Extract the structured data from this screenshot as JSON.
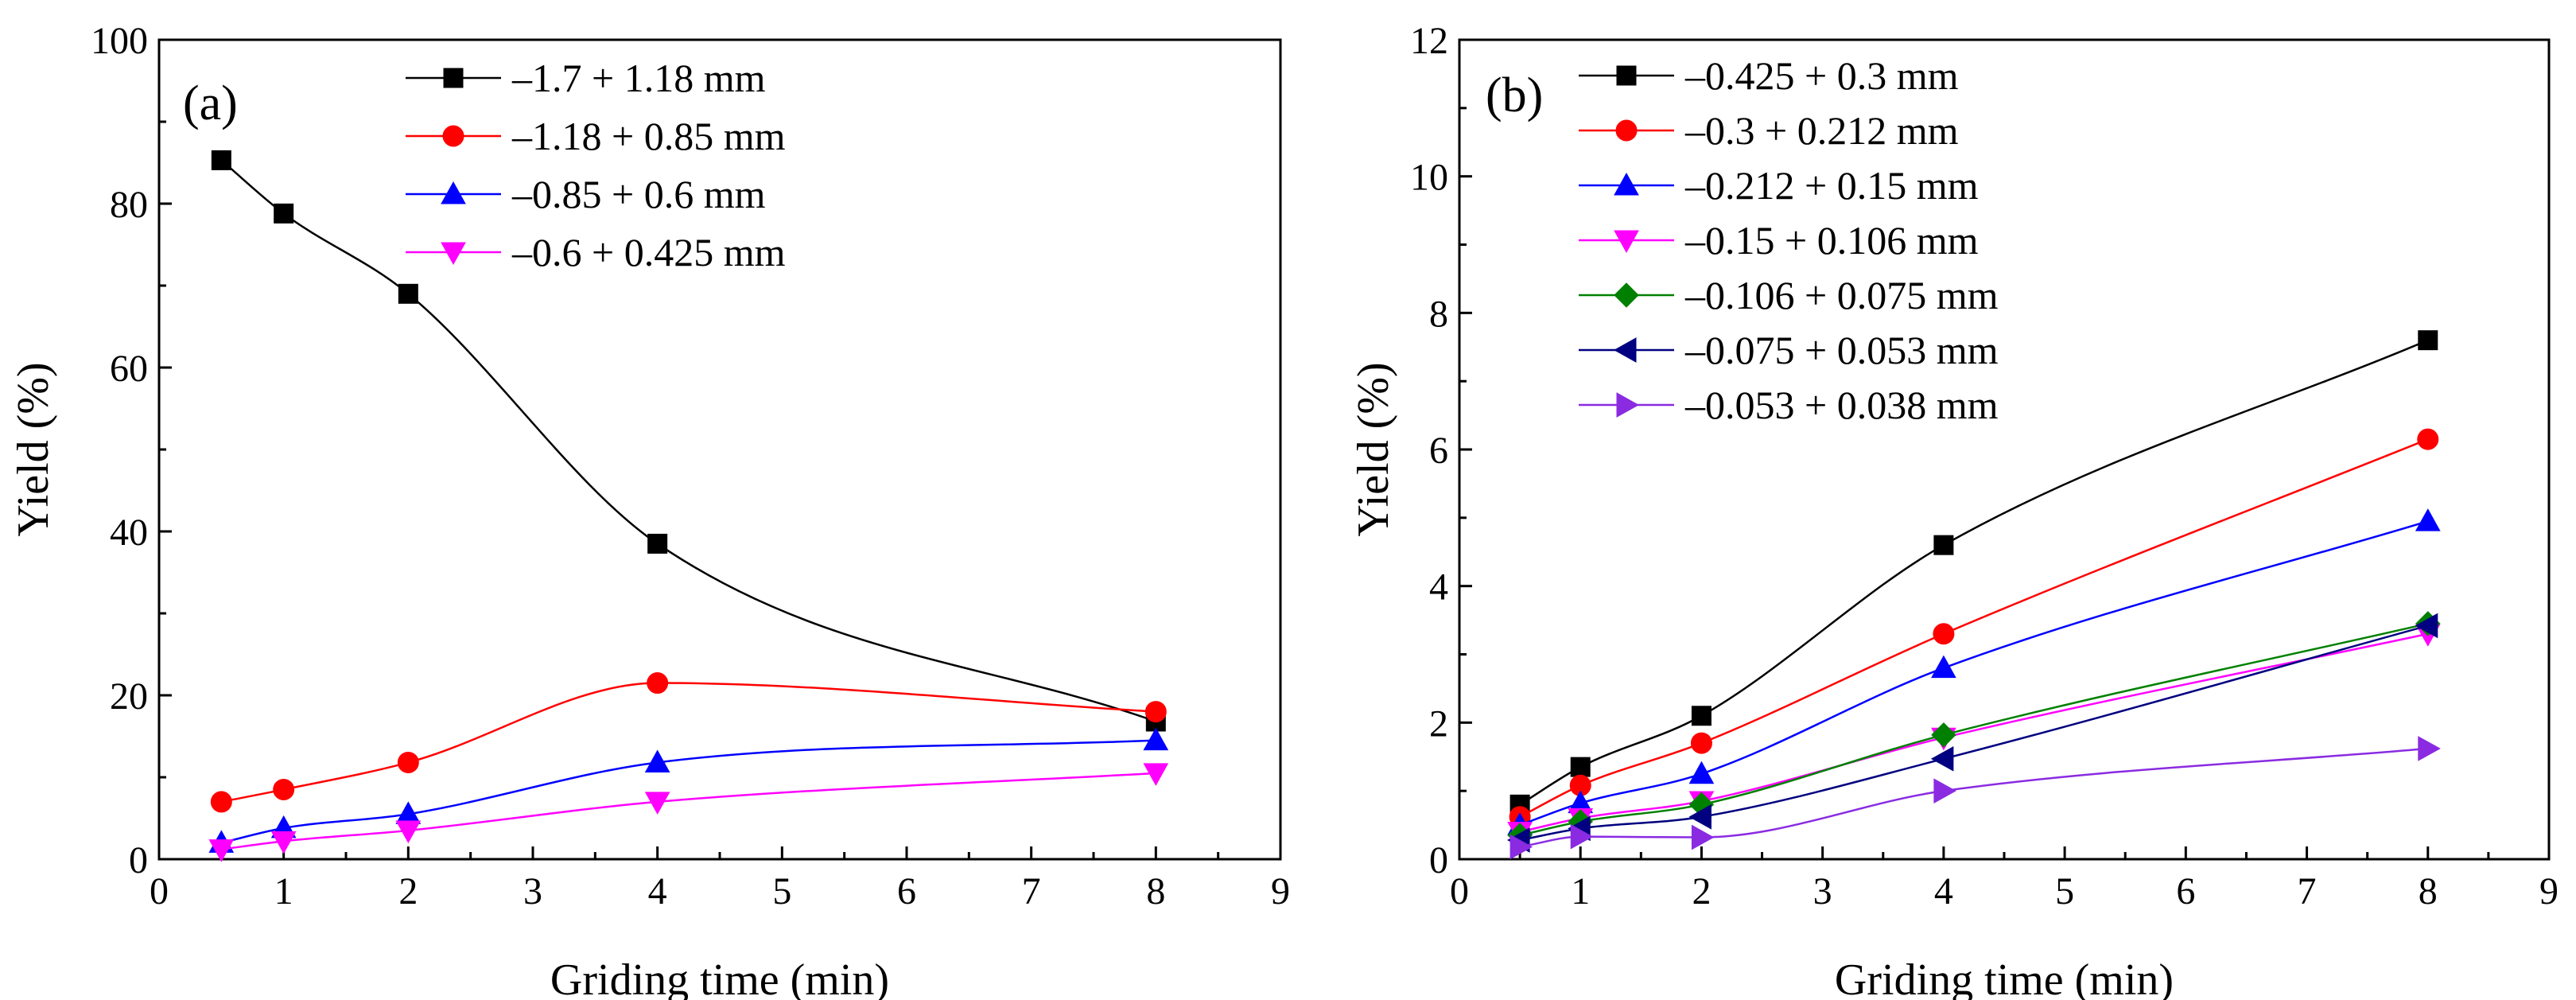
{
  "chart_data": [
    {
      "type": "line",
      "panel_label": "(a)",
      "xlabel": "Griding time (min)",
      "ylabel": "Yield (%)",
      "xlim": [
        0,
        9
      ],
      "ylim": [
        0,
        100
      ],
      "xticks": [
        "0",
        "1",
        "2",
        "3",
        "4",
        "5",
        "6",
        "7",
        "8",
        "9"
      ],
      "yticks": [
        "0",
        "20",
        "40",
        "60",
        "80",
        "100"
      ],
      "x": [
        0.5,
        1,
        2,
        4,
        8
      ],
      "legend_position": "top-right",
      "series": [
        {
          "name": "–1.7 + 1.18 mm",
          "color": "#000000",
          "marker": "square",
          "values": [
            85.3,
            78.8,
            69.0,
            38.5,
            16.8
          ]
        },
        {
          "name": "–1.18 + 0.85 mm",
          "color": "#ff0000",
          "marker": "circle",
          "values": [
            7.0,
            8.5,
            11.8,
            21.5,
            18.0
          ]
        },
        {
          "name": "–0.85 + 0.6 mm",
          "color": "#0000ff",
          "marker": "triangle-up",
          "values": [
            2.0,
            3.8,
            5.5,
            11.8,
            14.5
          ]
        },
        {
          "name": "–0.6 + 0.425 mm",
          "color": "#ff00ff",
          "marker": "triangle-down",
          "values": [
            1.2,
            2.2,
            3.5,
            7.0,
            10.5
          ]
        }
      ]
    },
    {
      "type": "line",
      "panel_label": "(b)",
      "xlabel": "Griding time (min)",
      "ylabel": "Yield (%)",
      "xlim": [
        0,
        9
      ],
      "ylim": [
        0,
        12
      ],
      "xticks": [
        "0",
        "1",
        "2",
        "3",
        "4",
        "5",
        "6",
        "7",
        "8",
        "9"
      ],
      "yticks": [
        "0",
        "2",
        "4",
        "6",
        "8",
        "10",
        "12"
      ],
      "x": [
        0.5,
        1,
        2,
        4,
        8
      ],
      "legend_position": "top-left",
      "series": [
        {
          "name": "–0.425 + 0.3 mm",
          "color": "#000000",
          "marker": "square",
          "values": [
            0.8,
            1.35,
            2.1,
            4.6,
            7.6
          ]
        },
        {
          "name": "–0.3 + 0.212 mm",
          "color": "#ff0000",
          "marker": "circle",
          "values": [
            0.62,
            1.08,
            1.7,
            3.3,
            6.15
          ]
        },
        {
          "name": "–0.212 + 0.15 mm",
          "color": "#0000ff",
          "marker": "triangle-up",
          "values": [
            0.5,
            0.82,
            1.25,
            2.8,
            4.95
          ]
        },
        {
          "name": "–0.15 + 0.106 mm",
          "color": "#ff00ff",
          "marker": "triangle-down",
          "values": [
            0.4,
            0.6,
            0.85,
            1.78,
            3.3
          ]
        },
        {
          "name": "–0.106 + 0.075 mm",
          "color": "#008000",
          "marker": "diamond",
          "values": [
            0.35,
            0.55,
            0.8,
            1.82,
            3.45
          ]
        },
        {
          "name": "–0.075 + 0.053 mm",
          "color": "#000080",
          "marker": "triangle-left",
          "values": [
            0.28,
            0.45,
            0.62,
            1.47,
            3.42
          ]
        },
        {
          "name": "–0.053 + 0.038 mm",
          "color": "#8a2be2",
          "marker": "triangle-right",
          "values": [
            0.18,
            0.33,
            0.32,
            1.0,
            1.62
          ]
        }
      ]
    }
  ]
}
